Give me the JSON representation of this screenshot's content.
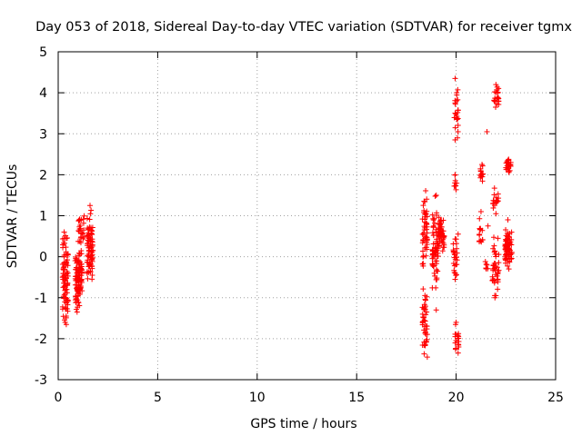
{
  "chart_data": {
    "type": "scatter",
    "title": "Day 053 of 2018, Sidereal Day-to-day VTEC variation (SDTVAR) for receiver tgmx",
    "xlabel": "GPS time / hours",
    "ylabel": "SDTVAR / TECUs",
    "xlim": [
      0,
      25
    ],
    "ylim": [
      -3,
      5
    ],
    "grid": true,
    "legend": "none",
    "marker": "plus",
    "xticks": [
      0,
      5,
      10,
      15,
      20,
      25
    ],
    "yticks": [
      -3,
      -2,
      -1,
      0,
      1,
      2,
      3,
      4,
      5
    ],
    "series": [
      {
        "name": "SDTVAR",
        "color": "#ff0000",
        "clusters": [
          {
            "x": [
              0.22,
              0.5
            ],
            "y": [
              -1.75,
              0.7
            ],
            "n": 90
          },
          {
            "x": [
              0.85,
              1.2
            ],
            "y": [
              -1.4,
              0.35
            ],
            "n": 110
          },
          {
            "x": [
              1.0,
              1.35
            ],
            "y": [
              0.2,
              1.1
            ],
            "n": 25
          },
          {
            "x": [
              1.45,
              1.75
            ],
            "y": [
              -0.95,
              1.3
            ],
            "n": 80
          },
          {
            "x": [
              18.3,
              18.55
            ],
            "y": [
              -2.5,
              -0.5
            ],
            "n": 40
          },
          {
            "x": [
              18.3,
              18.55
            ],
            "y": [
              -0.5,
              1.75
            ],
            "n": 50
          },
          {
            "x": [
              18.8,
              19.1
            ],
            "y": [
              -0.95,
              1.5
            ],
            "n": 70
          },
          {
            "x": [
              19.1,
              19.4
            ],
            "y": [
              0.1,
              1.0
            ],
            "n": 55
          },
          {
            "x": [
              19.85,
              20.05
            ],
            "y": [
              -0.55,
              0.6
            ],
            "n": 25
          },
          {
            "x": [
              19.9,
              20.1
            ],
            "y": [
              2.7,
              4.35
            ],
            "n": 22
          },
          {
            "x": [
              19.95,
              20.15
            ],
            "y": [
              -2.4,
              -1.6
            ],
            "n": 18
          },
          {
            "x": [
              19.9,
              20.1
            ],
            "y": [
              1.5,
              2.1
            ],
            "n": 8
          },
          {
            "x": [
              21.2,
              21.35
            ],
            "y": [
              1.8,
              2.3
            ],
            "n": 15
          },
          {
            "x": [
              21.15,
              21.35
            ],
            "y": [
              -0.3,
              1.2
            ],
            "n": 14
          },
          {
            "x": [
              21.45,
              21.6
            ],
            "y": [
              -0.35,
              0.0
            ],
            "n": 6
          },
          {
            "x": [
              21.9,
              22.15
            ],
            "y": [
              3.5,
              4.25
            ],
            "n": 22
          },
          {
            "x": [
              21.85,
              22.15
            ],
            "y": [
              1.0,
              1.7
            ],
            "n": 15
          },
          {
            "x": [
              21.8,
              22.15
            ],
            "y": [
              -1.05,
              0.5
            ],
            "n": 40
          },
          {
            "x": [
              22.5,
              22.75
            ],
            "y": [
              2.0,
              2.45
            ],
            "n": 22
          },
          {
            "x": [
              22.45,
              22.8
            ],
            "y": [
              -0.3,
              0.85
            ],
            "n": 70
          }
        ],
        "points": [
          [
            0.35,
            -1.6
          ],
          [
            0.4,
            -1.45
          ],
          [
            0.3,
            0.6
          ],
          [
            1.6,
            1.25
          ],
          [
            0.95,
            -1.35
          ],
          [
            18.55,
            -2.45
          ],
          [
            18.45,
            -2.15
          ],
          [
            19.0,
            1.5
          ],
          [
            19.0,
            -1.3
          ],
          [
            19.95,
            4.35
          ],
          [
            20.05,
            3.35
          ],
          [
            19.95,
            3.75
          ],
          [
            19.95,
            2.0
          ],
          [
            20.1,
            -2.35
          ],
          [
            20.0,
            -1.6
          ],
          [
            19.95,
            -0.55
          ],
          [
            20.1,
            0.55
          ],
          [
            21.55,
            3.05
          ],
          [
            21.3,
            2.25
          ],
          [
            21.25,
            1.1
          ],
          [
            22.0,
            4.2
          ],
          [
            22.05,
            3.85
          ],
          [
            22.0,
            1.45
          ],
          [
            22.0,
            1.05
          ],
          [
            21.95,
            -1.0
          ],
          [
            22.1,
            0.45
          ],
          [
            21.6,
            0.75
          ],
          [
            22.6,
            2.35
          ],
          [
            22.7,
            2.1
          ],
          [
            22.6,
            0.9
          ],
          [
            22.65,
            -0.3
          ]
        ]
      }
    ]
  }
}
